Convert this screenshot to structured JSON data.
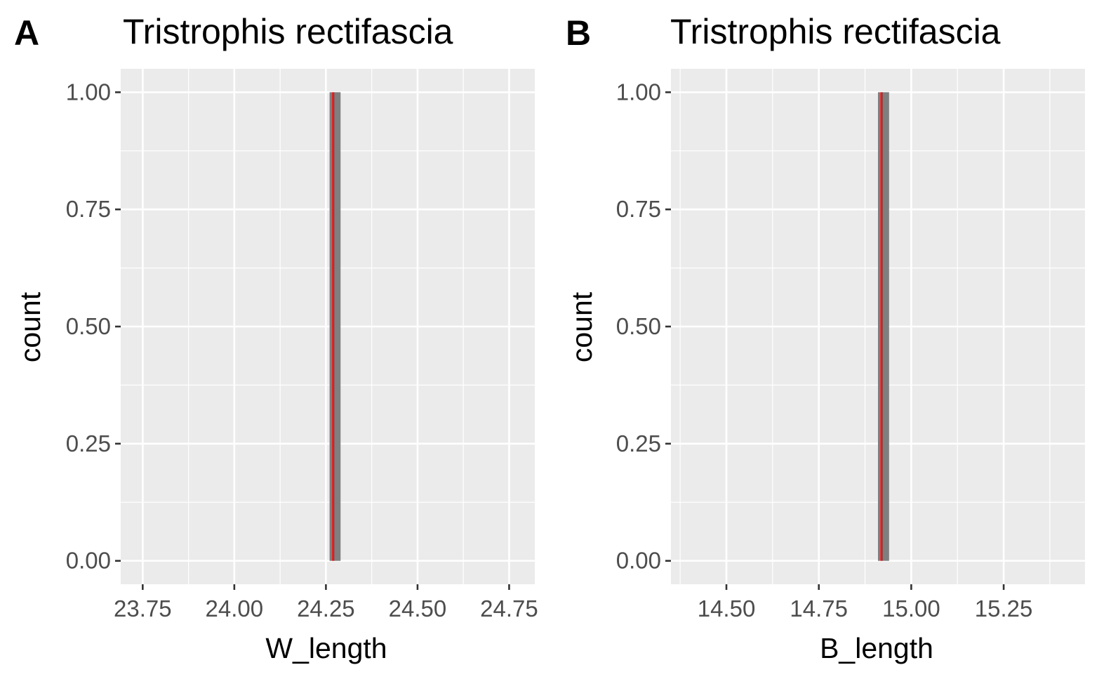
{
  "chart_data": [
    {
      "type": "bar",
      "panel_label": "A",
      "title": "Tristrophis rectifascia",
      "xlabel": "W_length",
      "ylabel": "count",
      "xlim": [
        23.69,
        24.82
      ],
      "ylim": [
        -0.05,
        1.05
      ],
      "xticks": [
        23.75,
        24.0,
        24.25,
        24.5,
        24.75
      ],
      "xtick_labels": [
        "23.75",
        "24.00",
        "24.25",
        "24.50",
        "24.75"
      ],
      "yticks": [
        0,
        0.25,
        0.5,
        0.75,
        1.0
      ],
      "ytick_labels": [
        "0.00",
        "0.25",
        "0.50",
        "0.75",
        "1.00"
      ],
      "bars": [
        {
          "x0": 24.26,
          "x1": 24.29,
          "count": 1
        }
      ],
      "vline": {
        "x": 24.27,
        "color": "#e41a1c"
      },
      "colors": {
        "panel": "#ebebeb",
        "grid": "#ffffff",
        "bar": "#7f7f7f"
      },
      "grid": true
    },
    {
      "type": "bar",
      "panel_label": "B",
      "title": "Tristrophis rectifascia",
      "xlabel": "B_length",
      "ylabel": "count",
      "xlim": [
        14.35,
        15.47
      ],
      "ylim": [
        -0.05,
        1.05
      ],
      "xticks": [
        14.5,
        14.75,
        15.0,
        15.25
      ],
      "xtick_labels": [
        "14.50",
        "14.75",
        "15.00",
        "15.25"
      ],
      "yticks": [
        0,
        0.25,
        0.5,
        0.75,
        1.0
      ],
      "ytick_labels": [
        "0.00",
        "0.25",
        "0.50",
        "0.75",
        "1.00"
      ],
      "bars": [
        {
          "x0": 14.91,
          "x1": 14.94,
          "count": 1
        }
      ],
      "vline": {
        "x": 14.92,
        "color": "#e41a1c"
      },
      "colors": {
        "panel": "#ebebeb",
        "grid": "#ffffff",
        "bar": "#7f7f7f"
      },
      "grid": true
    }
  ]
}
